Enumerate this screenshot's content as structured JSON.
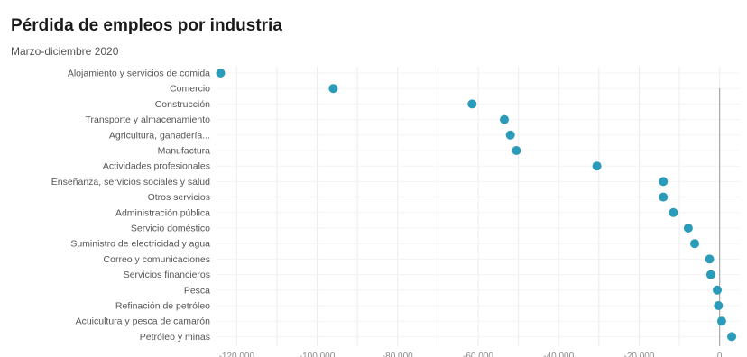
{
  "chart_data": {
    "type": "scatter",
    "title": "Pérdida de empleos por industria",
    "subtitle": "Marzo-diciembre 2020",
    "xlabel": "",
    "ylabel": "",
    "xlim": [
      -125000,
      5000
    ],
    "xticks": [
      -120000,
      -100000,
      -80000,
      -60000,
      -40000,
      -20000,
      0
    ],
    "xtick_labels": [
      "-120.000",
      "-100.000",
      "-80.000",
      "-60.000",
      "-40.000",
      "-20.000",
      "0"
    ],
    "grid": true,
    "point_color": "#2a9bb8",
    "categories": [
      "Alojamiento y servicios de comida",
      "Comercio",
      "Construcción",
      "Transporte y almacenamiento",
      "Agricultura, ganadería...",
      "Manufactura",
      "Actividades profesionales",
      "Enseñanza, servicios sociales y salud",
      "Otros servicios",
      "Administración pública",
      "Servicio doméstico",
      "Suministro de electricidad y agua",
      "Correo y comunicaciones",
      "Servicios financieros",
      "Pesca",
      "Refinación de petróleo",
      "Acuicultura y pesca de camarón",
      "Petróleo y minas"
    ],
    "values": [
      -124000,
      -96000,
      -61500,
      -53500,
      -52000,
      -50500,
      -30500,
      -14000,
      -14000,
      -11500,
      -7800,
      -6200,
      -2500,
      -2200,
      -600,
      -300,
      500,
      3000
    ]
  }
}
